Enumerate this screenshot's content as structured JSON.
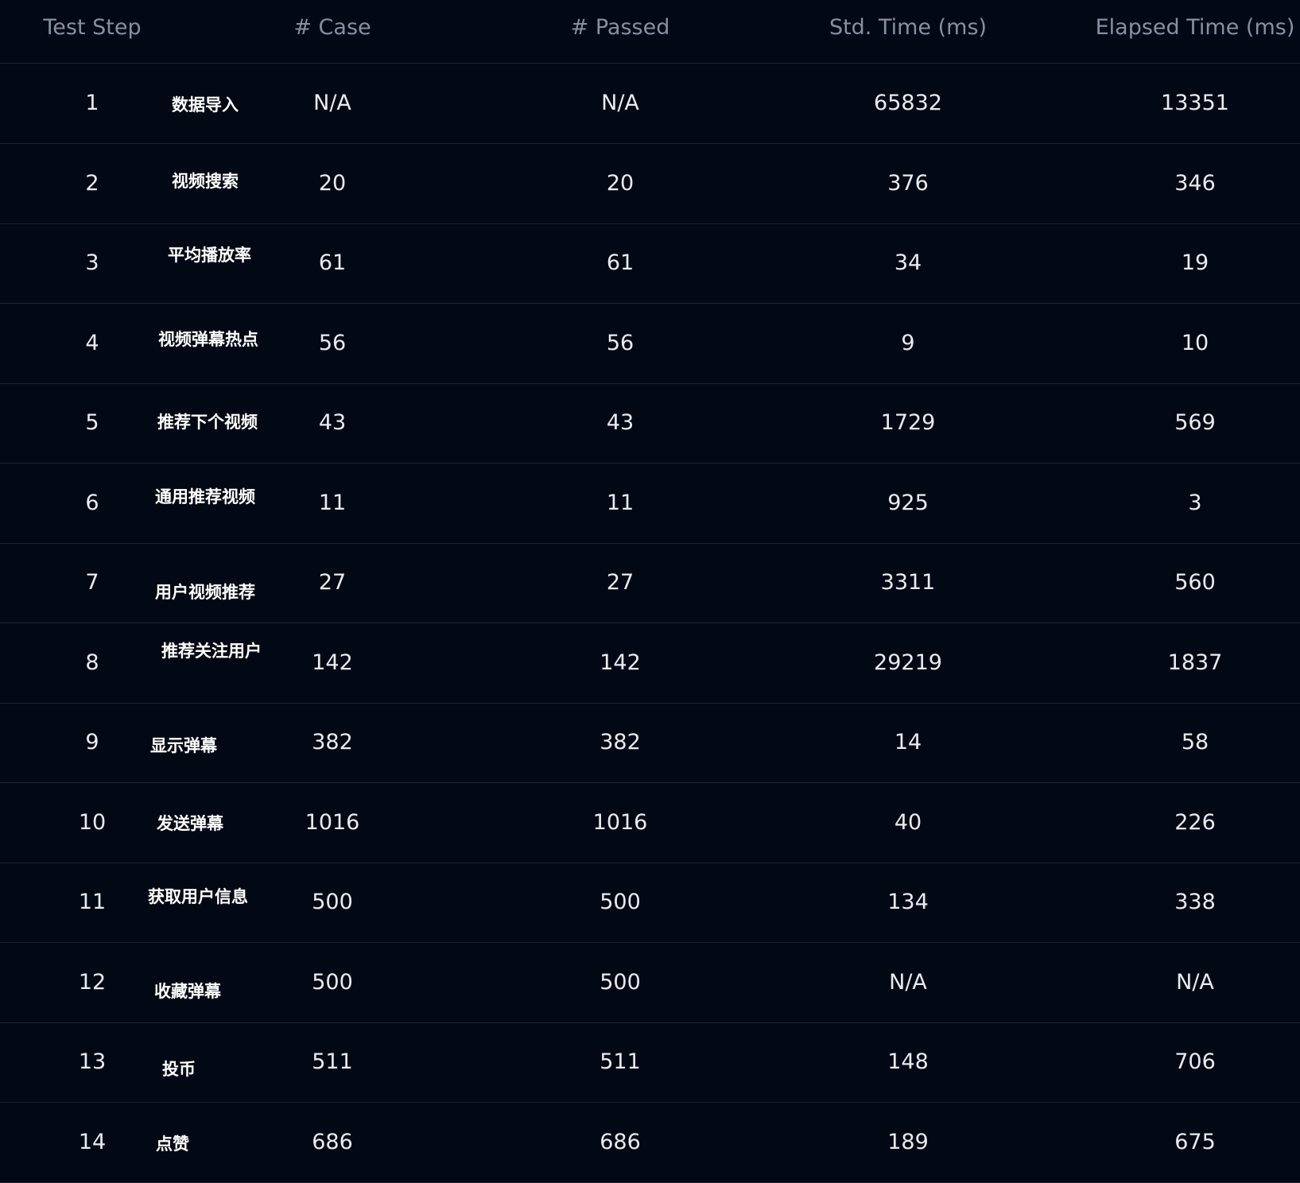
{
  "columns": [
    "Test Step",
    "# Case",
    "# Passed",
    "Std. Time (ms)",
    "Elapsed Time (ms)"
  ],
  "rows": [
    {
      "step": "1",
      "name": "数据导入",
      "cases": "N/A",
      "passed": "N/A",
      "std_time": "65832",
      "elapsed": "13351"
    },
    {
      "step": "2",
      "name": "视频搜索",
      "cases": "20",
      "passed": "20",
      "std_time": "376",
      "elapsed": "346"
    },
    {
      "step": "3",
      "name": "平均播放率",
      "cases": "61",
      "passed": "61",
      "std_time": "34",
      "elapsed": "19"
    },
    {
      "step": "4",
      "name": "视频弹幕热点",
      "cases": "56",
      "passed": "56",
      "std_time": "9",
      "elapsed": "10"
    },
    {
      "step": "5",
      "name": "推荐下个视频",
      "cases": "43",
      "passed": "43",
      "std_time": "1729",
      "elapsed": "569"
    },
    {
      "step": "6",
      "name": "通用推荐视频",
      "cases": "11",
      "passed": "11",
      "std_time": "925",
      "elapsed": "3"
    },
    {
      "step": "7",
      "name": "用户视频推荐",
      "cases": "27",
      "passed": "27",
      "std_time": "3311",
      "elapsed": "560"
    },
    {
      "step": "8",
      "name": "推荐关注用户",
      "cases": "142",
      "passed": "142",
      "std_time": "29219",
      "elapsed": "1837"
    },
    {
      "step": "9",
      "name": "显示弹幕",
      "cases": "382",
      "passed": "382",
      "std_time": "14",
      "elapsed": "58"
    },
    {
      "step": "10",
      "name": "发送弹幕",
      "cases": "1016",
      "passed": "1016",
      "std_time": "40",
      "elapsed": "226"
    },
    {
      "step": "11",
      "name": "获取用户信息",
      "cases": "500",
      "passed": "500",
      "std_time": "134",
      "elapsed": "338"
    },
    {
      "step": "12",
      "name": "收藏弹幕",
      "cases": "500",
      "passed": "500",
      "std_time": "N/A",
      "elapsed": "N/A"
    },
    {
      "step": "13",
      "name": "投币",
      "cases": "511",
      "passed": "511",
      "std_time": "148",
      "elapsed": "706"
    },
    {
      "step": "14",
      "name": "点赞",
      "cases": "686",
      "passed": "686",
      "std_time": "189",
      "elapsed": "675"
    }
  ]
}
